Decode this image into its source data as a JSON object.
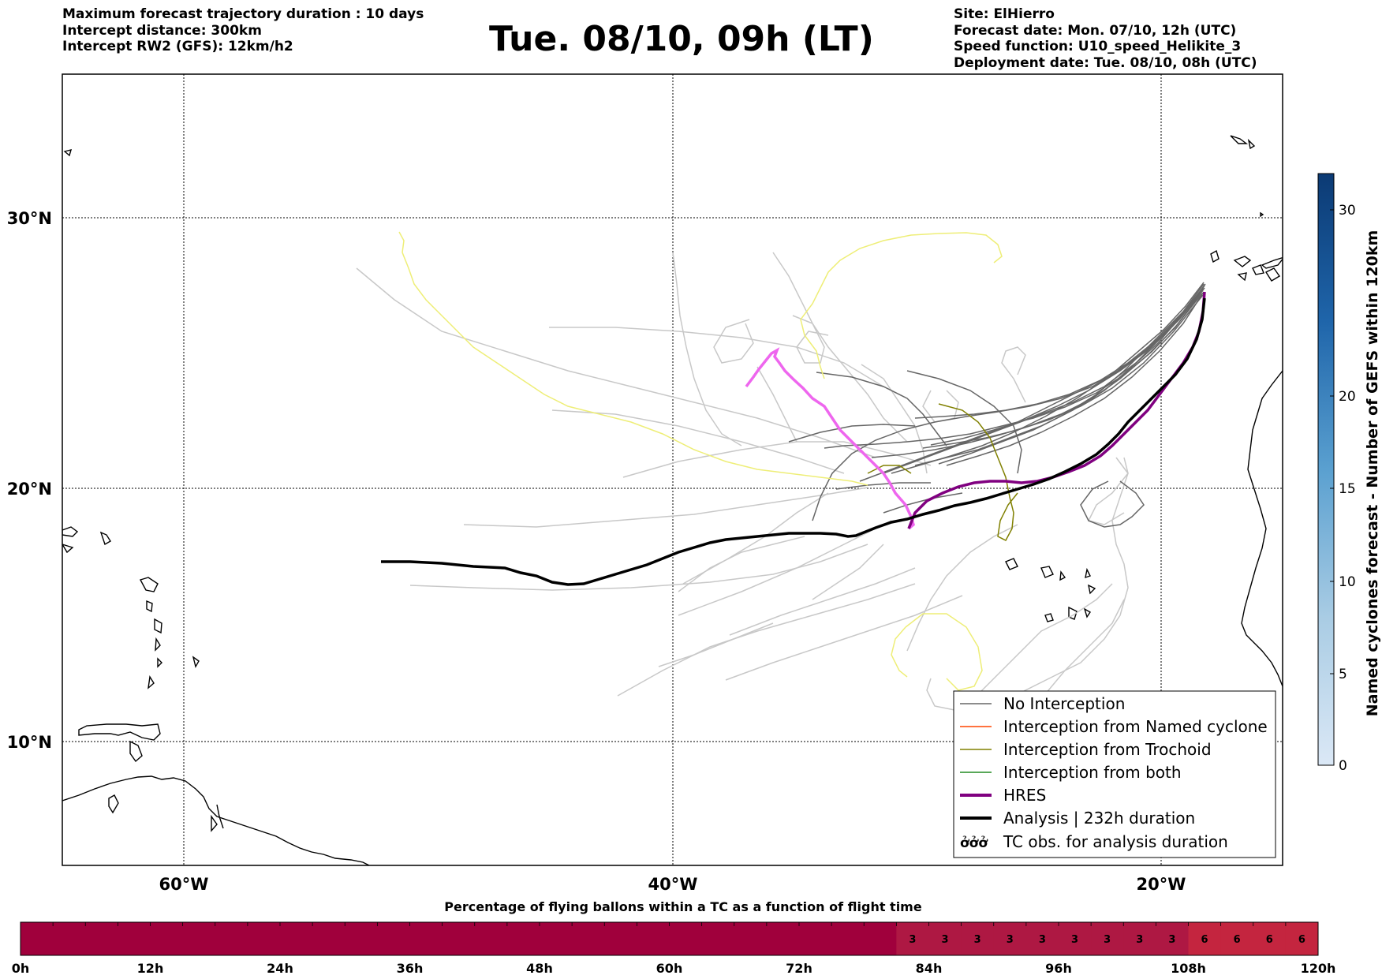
{
  "header_left": [
    "Maximum forecast trajectory duration : 10 days",
    "Intercept distance: 300km",
    "Intercept RW2 (GFS):  12km/h2"
  ],
  "title": "Tue. 08/10, 09h (LT)",
  "header_right": [
    "Site: ElHierro",
    "Forecast date: Mon. 07/10, 12h (UTC)",
    "Speed function: U10_speed_Helikite_3",
    "Deployment date: Tue. 08/10, 08h (UTC)"
  ],
  "map": {
    "lon_ticks": [
      "60°W",
      "40°W",
      "20°W"
    ],
    "lat_ticks": [
      "30°N",
      "20°N",
      "10°N"
    ],
    "colors": {
      "no_interception": "#666666",
      "ensemble_light": "#c8c8c8",
      "named_cyclone": "#ff4500",
      "trochoid": "#808000",
      "both": "#228b22",
      "hres": "#800080",
      "hres_light": "#ee66ee",
      "analysis": "#000000",
      "yellow_tracks": "#eeee77"
    }
  },
  "legend": {
    "items": [
      "No Interception",
      "Interception from Named cyclone",
      "Interception from Trochoid",
      "Interception from both",
      "HRES",
      "Analysis | 232h duration",
      "TC obs. for analysis duration"
    ],
    "tc_symbol": "ởởở"
  },
  "colorbar": {
    "label": "Named cyclones forecast - Number of GEFS within 120km",
    "ticks": [
      "0",
      "5",
      "10",
      "15",
      "20",
      "30"
    ]
  },
  "time_bar": {
    "title": "Percentage of flying ballons within a TC as a function of flight time",
    "labels": [
      "0h",
      "12h",
      "24h",
      "36h",
      "48h",
      "60h",
      "72h",
      "84h",
      "96h",
      "108h",
      "120h"
    ],
    "cell_values": [
      "",
      "",
      "",
      "",
      "",
      "",
      "",
      "",
      "",
      "",
      "",
      "",
      "",
      "",
      "",
      "",
      "",
      "",
      "",
      "",
      "",
      "",
      "",
      "",
      "",
      "",
      "",
      "3",
      "3",
      "3",
      "3",
      "3",
      "3",
      "3",
      "3",
      "3",
      "6",
      "6",
      "6",
      "6"
    ]
  }
}
